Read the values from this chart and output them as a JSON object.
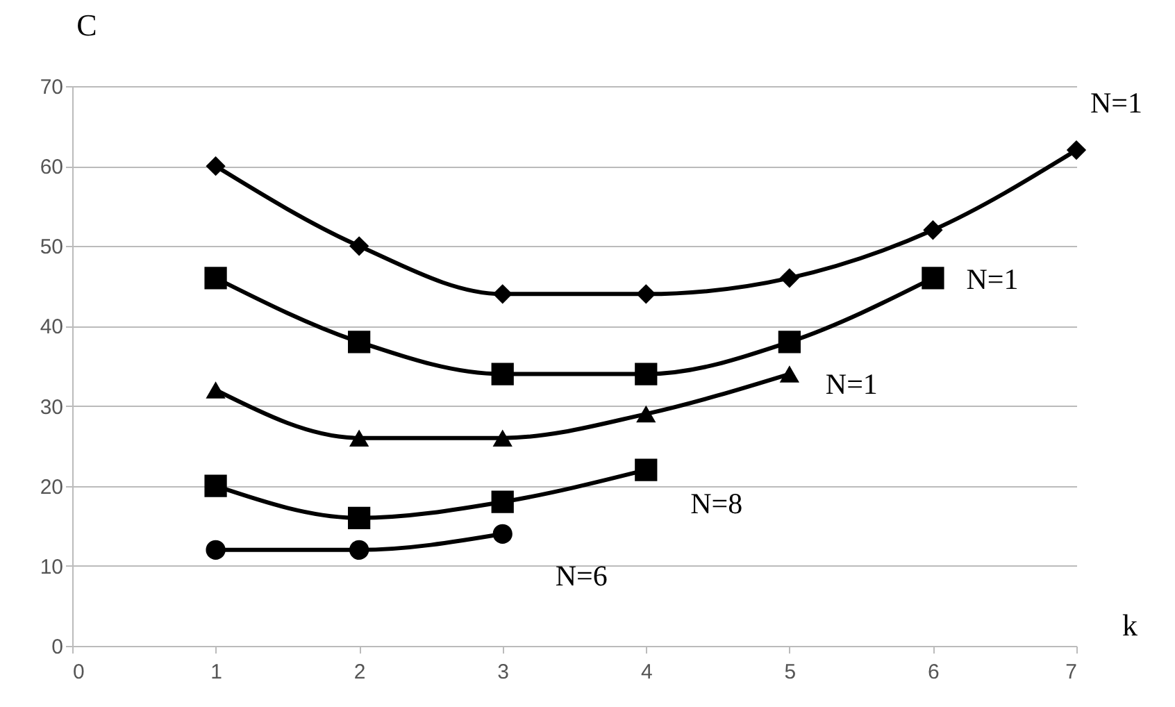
{
  "chart_data": {
    "type": "line",
    "xlabel": "k",
    "ylabel": "C",
    "x": [
      1,
      2,
      3,
      4,
      5,
      6,
      7
    ],
    "series": [
      {
        "name": "N=1",
        "color": "#000000",
        "marker": "diamond",
        "values": [
          60,
          50,
          44,
          44,
          46,
          52,
          62
        ]
      },
      {
        "name": "N=1",
        "color": "#000000",
        "marker": "square",
        "values": [
          46,
          38,
          34,
          34,
          38,
          46,
          null
        ]
      },
      {
        "name": "N=1",
        "color": "#000000",
        "marker": "triangle",
        "values": [
          32,
          26,
          26,
          29,
          34,
          null,
          null
        ]
      },
      {
        "name": "N=8",
        "color": "#000000",
        "marker": "square",
        "values": [
          20,
          16,
          18,
          22,
          null,
          null,
          null
        ]
      },
      {
        "name": "N=6",
        "color": "#000000",
        "marker": "circle",
        "values": [
          12,
          12,
          14,
          null,
          null,
          null,
          null
        ]
      }
    ],
    "xlim": [
      0,
      7
    ],
    "xticks": [
      0,
      1,
      2,
      3,
      4,
      5,
      6,
      7
    ],
    "ylim": [
      0,
      70
    ],
    "yticks": [
      0,
      10,
      20,
      30,
      40,
      50,
      60,
      70
    ],
    "grid": "y",
    "line_style": "solid"
  }
}
